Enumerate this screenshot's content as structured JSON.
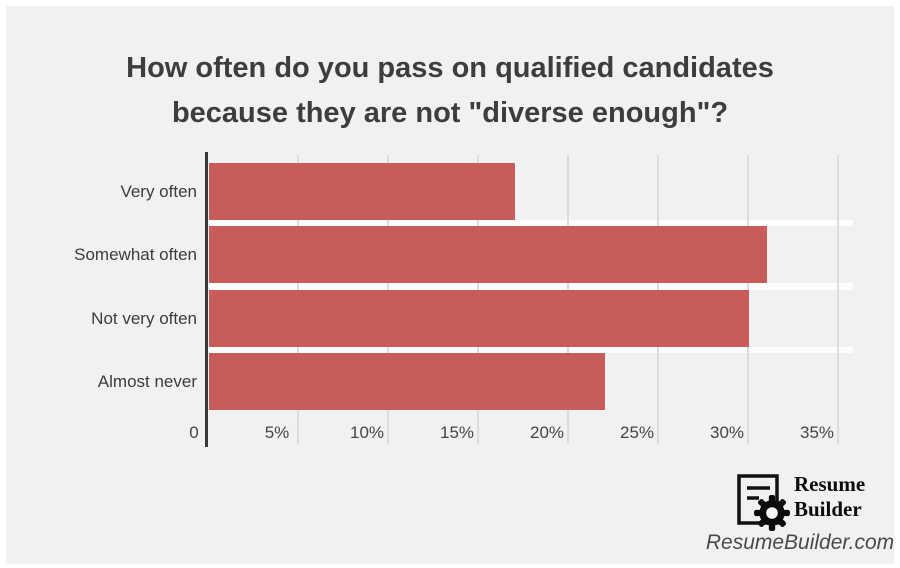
{
  "title": {
    "line1": "How often do you pass on qualified candidates",
    "line2": "because they are not \"diverse enough\"?"
  },
  "chart_data": {
    "type": "bar",
    "orientation": "horizontal",
    "title": "How often do you pass on qualified candidates because they are not \"diverse enough\"?",
    "categories": [
      "Very often",
      "Somewhat often",
      "Not very often",
      "Almost never"
    ],
    "values": [
      17,
      31,
      30,
      22
    ],
    "unit": "%",
    "xlabel": "",
    "ylabel": "",
    "xlim": [
      0,
      36
    ],
    "x_ticks": [
      {
        "value": 0,
        "label": "0"
      },
      {
        "value": 5,
        "label": "5%"
      },
      {
        "value": 10,
        "label": "10%"
      },
      {
        "value": 15,
        "label": "15%"
      },
      {
        "value": 20,
        "label": "20%"
      },
      {
        "value": 25,
        "label": "25%"
      },
      {
        "value": 30,
        "label": "30%"
      },
      {
        "value": 35,
        "label": "35%"
      }
    ],
    "grid": true,
    "legend": false,
    "bar_color": "#c75c5a",
    "axis_color": "#3a3a3a",
    "grid_color": "#dcdcdc",
    "background_color": "#f1f1f1"
  },
  "logo": {
    "word1": "Resume",
    "word2": "Builder",
    "site": "ResumeBuilder.com"
  }
}
